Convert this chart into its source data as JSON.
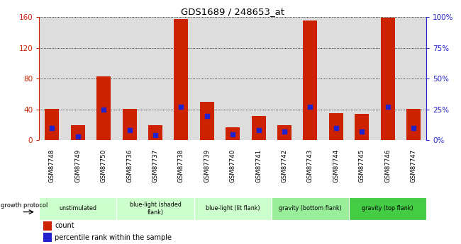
{
  "title": "GDS1689 / 248653_at",
  "samples": [
    "GSM87748",
    "GSM87749",
    "GSM87750",
    "GSM87736",
    "GSM87737",
    "GSM87738",
    "GSM87739",
    "GSM87740",
    "GSM87741",
    "GSM87742",
    "GSM87743",
    "GSM87744",
    "GSM87745",
    "GSM87746",
    "GSM87747"
  ],
  "counts": [
    41,
    20,
    83,
    41,
    20,
    157,
    50,
    17,
    32,
    20,
    156,
    35,
    34,
    159,
    41
  ],
  "percentiles": [
    10,
    3,
    25,
    8,
    4,
    27,
    20,
    5,
    8,
    7,
    27,
    10,
    7,
    27,
    10
  ],
  "ylim_left": [
    0,
    160
  ],
  "ylim_right": [
    0,
    100
  ],
  "yticks_left": [
    0,
    40,
    80,
    120,
    160
  ],
  "yticks_right": [
    0,
    25,
    50,
    75,
    100
  ],
  "group_info": [
    {
      "label": "unstimulated",
      "start": 0,
      "end": 3,
      "color": "#ccffcc"
    },
    {
      "label": "blue-light (shaded\nflank)",
      "start": 3,
      "end": 6,
      "color": "#ccffcc"
    },
    {
      "label": "blue-light (lit flank)",
      "start": 6,
      "end": 9,
      "color": "#ccffcc"
    },
    {
      "label": "gravity (bottom flank)",
      "start": 9,
      "end": 12,
      "color": "#99ee99"
    },
    {
      "label": "gravity (top flank)",
      "start": 12,
      "end": 15,
      "color": "#44cc44"
    }
  ],
  "bar_color": "#cc2200",
  "dot_color": "#2222cc",
  "grid_color": "#000000",
  "plot_bg_color": "#dddddd",
  "sample_row_color": "#bbbbbb",
  "left_axis_color": "#cc2200",
  "right_axis_color": "#2222cc",
  "growth_protocol_label": "growth protocol",
  "legend_count_label": "count",
  "legend_percentile_label": "percentile rank within the sample",
  "bar_width": 0.55
}
